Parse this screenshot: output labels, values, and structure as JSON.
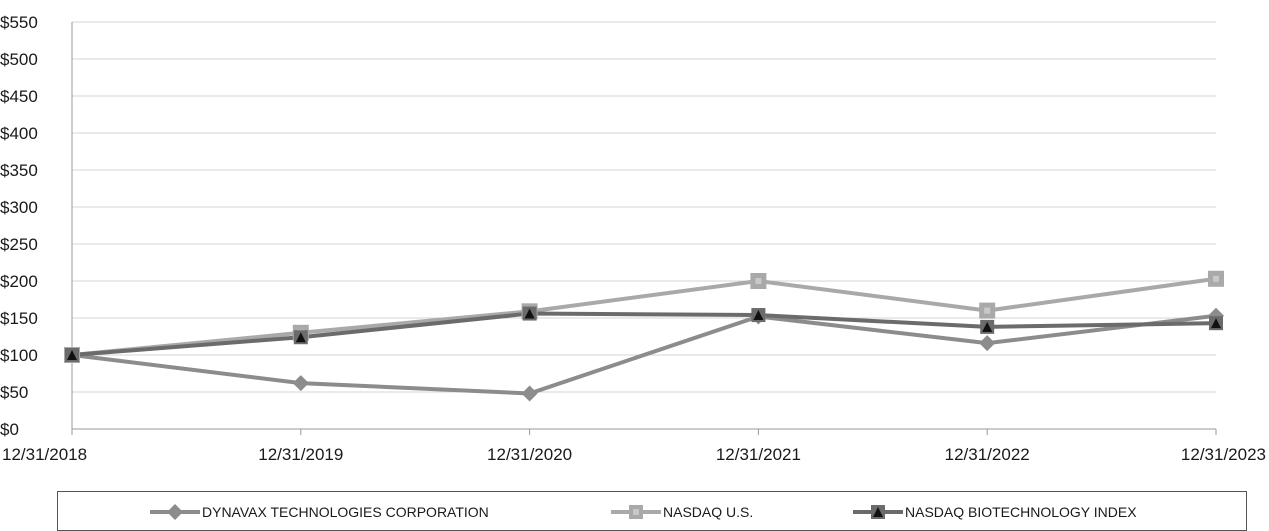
{
  "chart_data": {
    "type": "line",
    "categories": [
      "12/31/2018",
      "12/31/2019",
      "12/31/2020",
      "12/31/2021",
      "12/31/2022",
      "12/31/2023"
    ],
    "ylim": [
      0,
      550
    ],
    "yticks": [
      "$0",
      "$50",
      "$100",
      "$150",
      "$200",
      "$250",
      "$300",
      "$350",
      "$400",
      "$450",
      "$500",
      "$550"
    ],
    "grid": true,
    "legend_position": "bottom",
    "series": [
      {
        "name": "DYNAVAX TECHNOLOGIES CORPORATION",
        "marker": "diamond",
        "color": "#8c8c8c",
        "values": [
          100,
          62,
          48,
          152,
          116,
          153
        ]
      },
      {
        "name": "NASDAQ U.S.",
        "marker": "square",
        "color": "#a9a9a9",
        "values": [
          100,
          130,
          159,
          200,
          160,
          203
        ]
      },
      {
        "name": "NASDAQ BIOTECHNOLOGY INDEX",
        "marker": "triangle",
        "color": "#6b6b6b",
        "values": [
          100,
          124,
          156,
          154,
          138,
          143
        ]
      }
    ]
  }
}
